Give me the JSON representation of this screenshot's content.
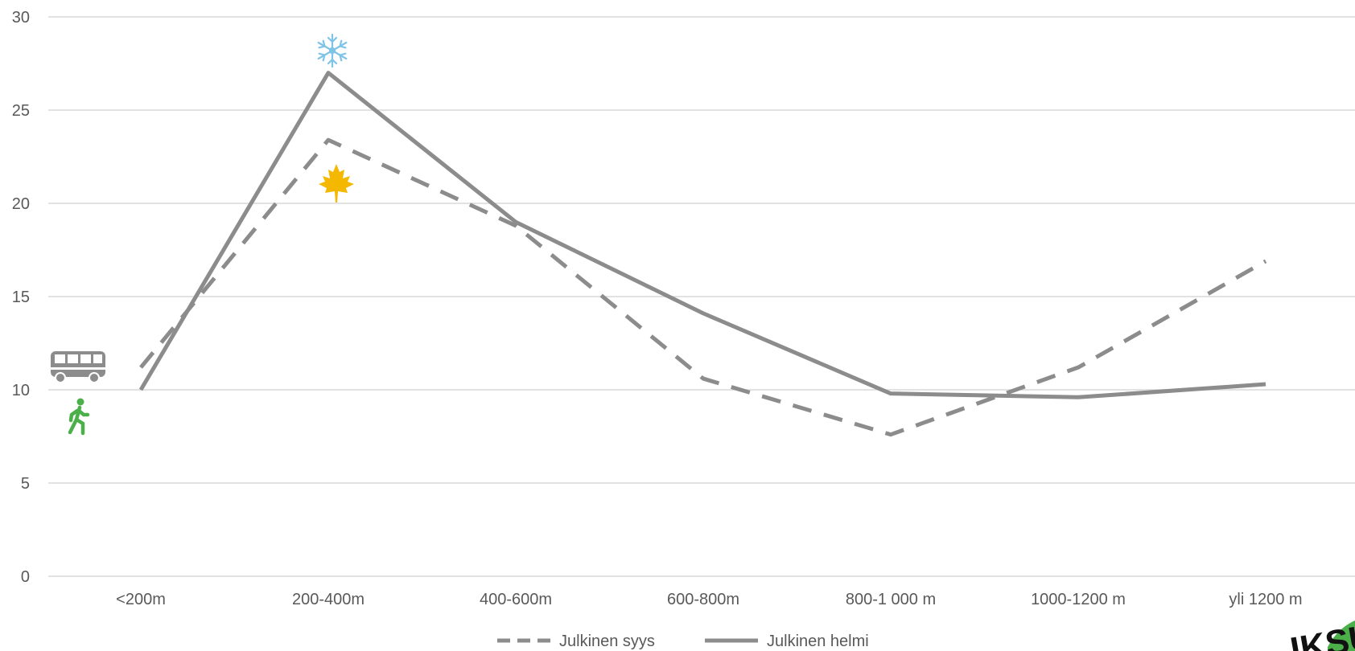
{
  "chart_data": {
    "type": "line",
    "categories": [
      "<200m",
      "200-400m",
      "400-600m",
      "600-800m",
      "800-1 000 m",
      "1000-1200 m",
      "yli 1200 m"
    ],
    "ylim": [
      0,
      30
    ],
    "yticks": [
      0,
      5,
      10,
      15,
      20,
      25,
      30
    ],
    "grid": true,
    "legend_position": "bottom",
    "series": [
      {
        "name": "Julkinen syys",
        "values": [
          11.2,
          23.4,
          18.8,
          10.6,
          7.6,
          11.2,
          16.9
        ],
        "style": "dashed",
        "color": "#8c8c8c"
      },
      {
        "name": "Julkinen helmi",
        "values": [
          10.0,
          27.0,
          19.0,
          14.1,
          9.8,
          9.6,
          10.3
        ],
        "style": "solid",
        "color": "#8c8c8c"
      }
    ],
    "annotations": [
      {
        "icon": "snowflake-icon",
        "color": "#7fc4e8"
      },
      {
        "icon": "maple-leaf-icon",
        "color": "#f5b800"
      },
      {
        "icon": "bus-icon",
        "color": "#8c8c8c"
      },
      {
        "icon": "walking-person-icon",
        "color": "#4cb04a"
      }
    ]
  },
  "logo": {
    "text": "IKSU",
    "icon": "logo-badge-icon",
    "color": "#4cb04a"
  }
}
